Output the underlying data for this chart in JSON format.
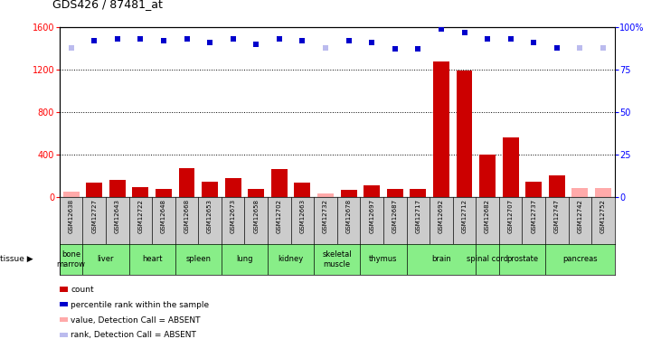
{
  "title": "GDS426 / 87481_at",
  "samples": [
    "GSM12638",
    "GSM12727",
    "GSM12643",
    "GSM12722",
    "GSM12648",
    "GSM12668",
    "GSM12653",
    "GSM12673",
    "GSM12658",
    "GSM12702",
    "GSM12663",
    "GSM12732",
    "GSM12678",
    "GSM12697",
    "GSM12687",
    "GSM12717",
    "GSM12692",
    "GSM12712",
    "GSM12682",
    "GSM12707",
    "GSM12737",
    "GSM12747",
    "GSM12742",
    "GSM12752"
  ],
  "count_values": [
    50,
    130,
    160,
    90,
    70,
    270,
    145,
    175,
    70,
    260,
    130,
    30,
    60,
    105,
    70,
    70,
    1280,
    1190,
    400,
    560,
    140,
    200,
    80,
    80
  ],
  "count_absent": [
    true,
    false,
    false,
    false,
    false,
    false,
    false,
    false,
    false,
    false,
    false,
    true,
    false,
    false,
    false,
    false,
    false,
    false,
    false,
    false,
    false,
    false,
    true,
    true
  ],
  "rank_values": [
    88,
    92,
    93,
    93,
    92,
    93,
    91,
    93,
    90,
    93,
    92,
    88,
    92,
    91,
    87,
    87,
    99,
    97,
    93,
    93,
    91,
    88,
    88,
    88
  ],
  "rank_absent": [
    true,
    false,
    false,
    false,
    false,
    false,
    false,
    false,
    false,
    false,
    false,
    true,
    false,
    false,
    false,
    false,
    false,
    false,
    false,
    false,
    false,
    false,
    true,
    true
  ],
  "tissues": [
    {
      "name": "bone\nmarrow",
      "start": 0,
      "end": 1
    },
    {
      "name": "liver",
      "start": 1,
      "end": 3
    },
    {
      "name": "heart",
      "start": 3,
      "end": 5
    },
    {
      "name": "spleen",
      "start": 5,
      "end": 7
    },
    {
      "name": "lung",
      "start": 7,
      "end": 9
    },
    {
      "name": "kidney",
      "start": 9,
      "end": 11
    },
    {
      "name": "skeletal\nmuscle",
      "start": 11,
      "end": 13
    },
    {
      "name": "thymus",
      "start": 13,
      "end": 15
    },
    {
      "name": "brain",
      "start": 15,
      "end": 18
    },
    {
      "name": "spinal cord",
      "start": 18,
      "end": 19
    },
    {
      "name": "prostate",
      "start": 19,
      "end": 21
    },
    {
      "name": "pancreas",
      "start": 21,
      "end": 24
    }
  ],
  "ylim_left": [
    0,
    1600
  ],
  "ylim_right": [
    0,
    100
  ],
  "yticks_left": [
    0,
    400,
    800,
    1200,
    1600
  ],
  "yticks_right": [
    0,
    25,
    50,
    75,
    100
  ],
  "bar_color_present": "#cc0000",
  "bar_color_absent": "#ffaaaa",
  "rank_color_present": "#0000cc",
  "rank_color_absent": "#bbbbee",
  "tissue_bg_color": "#88ee88",
  "sample_bg_color": "#cccccc",
  "grid_color": "#000000"
}
